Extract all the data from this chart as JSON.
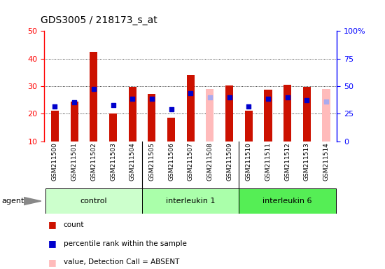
{
  "title": "GDS3005 / 218173_s_at",
  "samples": [
    "GSM211500",
    "GSM211501",
    "GSM211502",
    "GSM211503",
    "GSM211504",
    "GSM211505",
    "GSM211506",
    "GSM211507",
    "GSM211508",
    "GSM211509",
    "GSM211510",
    "GSM211511",
    "GSM211512",
    "GSM211513",
    "GSM211514"
  ],
  "groups": [
    {
      "label": "control",
      "color": "#ccffcc",
      "border": "#99cc99",
      "indices": [
        0,
        1,
        2,
        3,
        4
      ]
    },
    {
      "label": "interleukin 1",
      "color": "#aaffaa",
      "border": "#77bb77",
      "indices": [
        5,
        6,
        7,
        8,
        9
      ]
    },
    {
      "label": "interleukin 6",
      "color": "#55ee55",
      "border": "#33bb33",
      "indices": [
        10,
        11,
        12,
        13,
        14
      ]
    }
  ],
  "count_values": [
    21.2,
    24.5,
    42.5,
    20.0,
    29.7,
    27.2,
    18.5,
    34.0,
    29.0,
    30.2,
    21.2,
    28.8,
    30.5,
    29.7,
    29.0
  ],
  "rank_values": [
    22.5,
    24.0,
    29.0,
    23.0,
    25.5,
    25.5,
    21.5,
    27.5,
    26.0,
    26.0,
    22.5,
    25.5,
    26.0,
    25.0,
    24.5
  ],
  "absent_count": [
    false,
    false,
    false,
    false,
    false,
    false,
    false,
    false,
    true,
    false,
    false,
    false,
    false,
    false,
    true
  ],
  "absent_rank": [
    false,
    false,
    false,
    false,
    false,
    false,
    false,
    false,
    true,
    false,
    false,
    false,
    false,
    false,
    true
  ],
  "ylim_left": [
    10,
    50
  ],
  "ylim_right": [
    0,
    100
  ],
  "yticks_left": [
    10,
    20,
    30,
    40,
    50
  ],
  "yticks_right": [
    0,
    25,
    50,
    75,
    100
  ],
  "ytick_labels_right": [
    "0",
    "25",
    "50",
    "75",
    "100%"
  ],
  "bar_color_red": "#cc1100",
  "bar_color_pink": "#ffbbbb",
  "dot_color_blue": "#0000cc",
  "dot_color_lightblue": "#aaaaee",
  "bar_width": 0.4,
  "sample_bg": "#d0d0d0",
  "plot_bg": "#ffffff"
}
